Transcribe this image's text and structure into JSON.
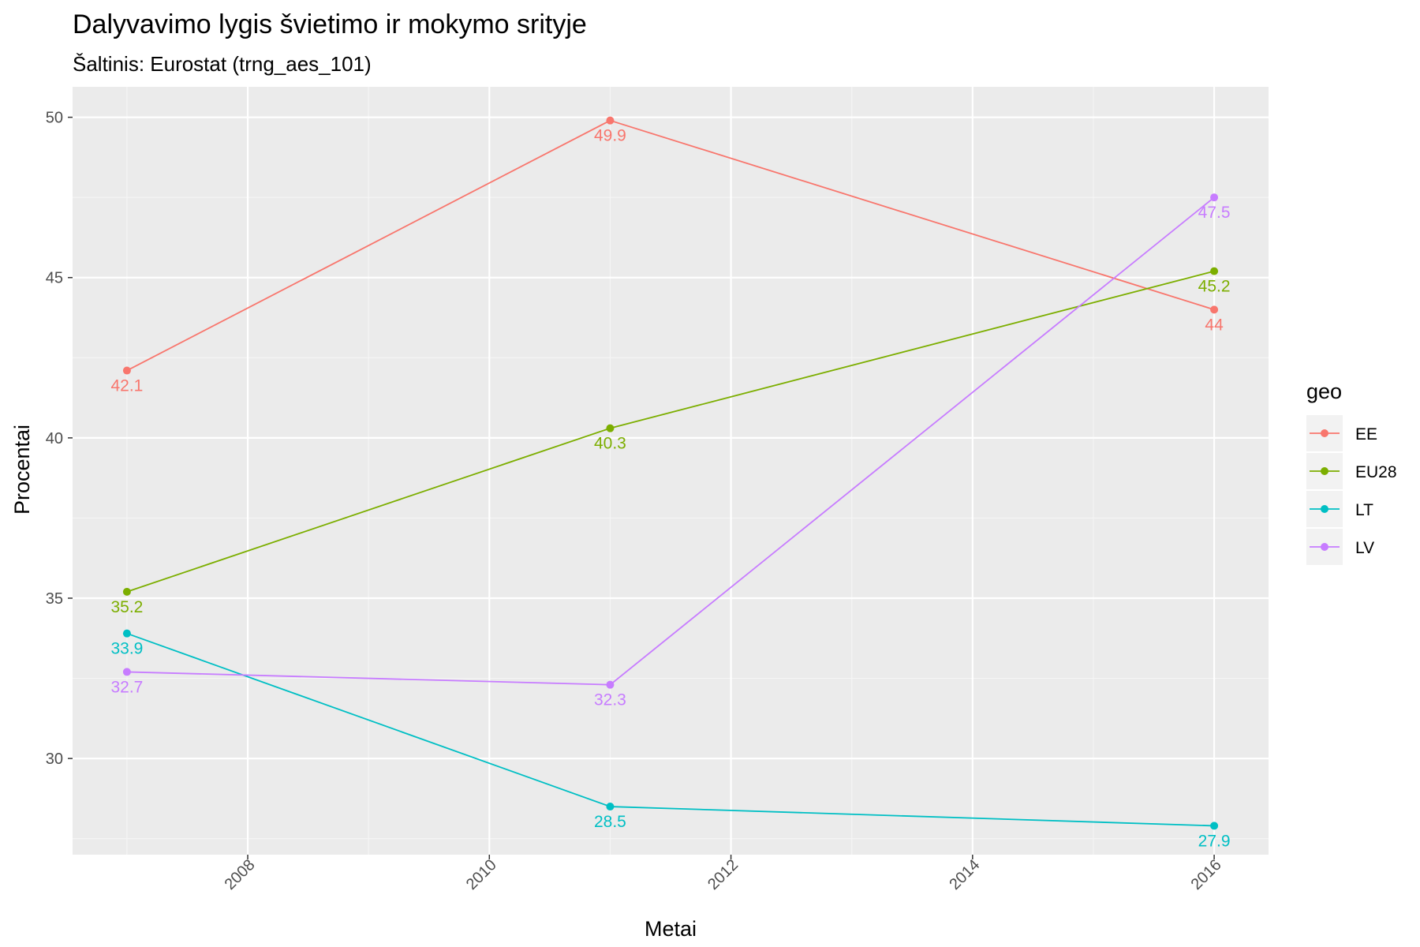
{
  "colors": {
    "EE": "#F8766D",
    "EU28": "#7CAE00",
    "LT": "#00BFC4",
    "LV": "#C77CFF",
    "panel": "#EBEBEB",
    "grid_major": "#FFFFFF",
    "grid_minor": "#F5F5F5",
    "tick_text": "#4D4D4D"
  },
  "chart_data": {
    "type": "line",
    "title": "Dalyvavimo lygis švietimo ir mokymo srityje",
    "subtitle": "Šaltinis: Eurostat (trng_aes_101)",
    "xlabel": "Metai",
    "ylabel": "Procentai",
    "xlim": [
      2006.55,
      2016.45
    ],
    "ylim": [
      27.0,
      50.95
    ],
    "x_ticks": [
      2008,
      2010,
      2012,
      2014,
      2016
    ],
    "y_ticks": [
      30,
      35,
      40,
      45,
      50
    ],
    "grid": true,
    "legend": {
      "title": "geo",
      "position": "right"
    },
    "x": [
      2007,
      2011,
      2016
    ],
    "series": [
      {
        "name": "EE",
        "values": [
          42.1,
          49.9,
          44.0
        ],
        "labels": [
          "42.1",
          "49.9",
          "44"
        ]
      },
      {
        "name": "EU28",
        "values": [
          35.2,
          40.3,
          45.2
        ],
        "labels": [
          "35.2",
          "40.3",
          "45.2"
        ]
      },
      {
        "name": "LT",
        "values": [
          33.9,
          28.5,
          27.9
        ],
        "labels": [
          "33.9",
          "28.5",
          "27.9"
        ]
      },
      {
        "name": "LV",
        "values": [
          32.7,
          32.3,
          47.5
        ],
        "labels": [
          "32.7",
          "32.3",
          "47.5"
        ]
      }
    ]
  }
}
